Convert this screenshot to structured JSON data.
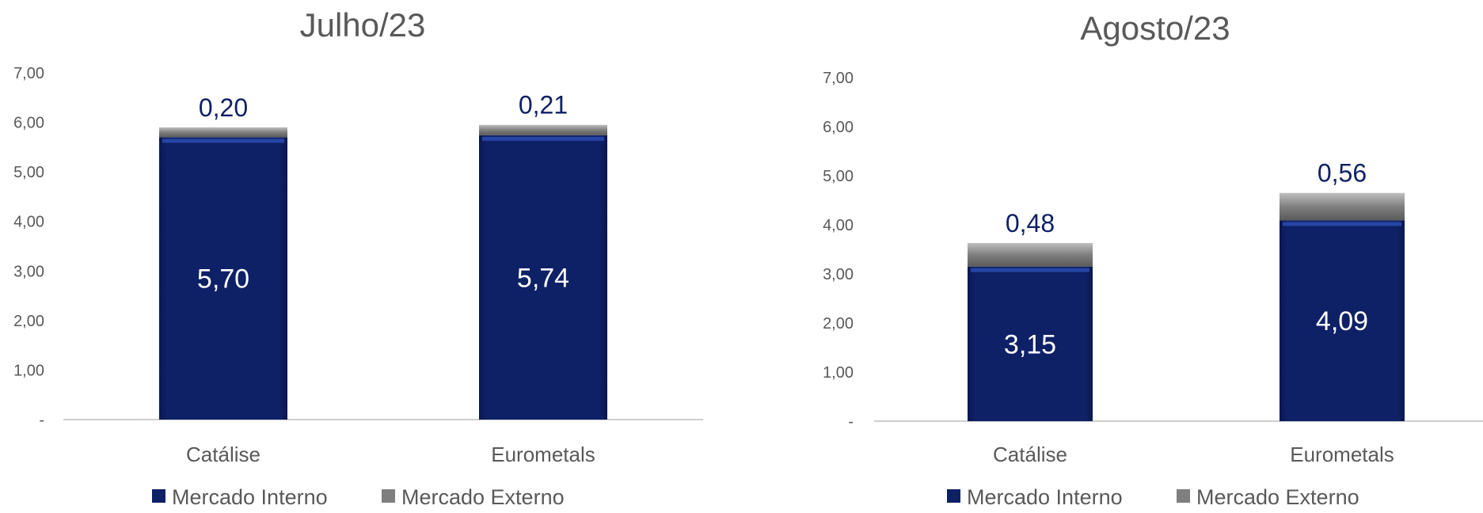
{
  "chart_data": [
    {
      "type": "bar",
      "stacked": true,
      "title": "Julho/23",
      "categories": [
        "Catálise",
        "Eurometals"
      ],
      "series": [
        {
          "name": "Mercado Interno",
          "values": [
            5.7,
            5.74
          ],
          "labels": [
            "5,70",
            "5,74"
          ]
        },
        {
          "name": "Mercado Externo",
          "values": [
            0.2,
            0.21
          ],
          "labels": [
            "0,20",
            "0,21"
          ]
        }
      ],
      "ylim": [
        0,
        7
      ],
      "yticks": [
        "-",
        "1,00",
        "2,00",
        "3,00",
        "4,00",
        "5,00",
        "6,00",
        "7,00"
      ],
      "legend": "bottom",
      "grid": false
    },
    {
      "type": "bar",
      "stacked": true,
      "title": "Agosto/23",
      "categories": [
        "Catálise",
        "Eurometals"
      ],
      "series": [
        {
          "name": "Mercado Interno",
          "values": [
            3.15,
            4.09
          ],
          "labels": [
            "3,15",
            "4,09"
          ]
        },
        {
          "name": "Mercado Externo",
          "values": [
            0.48,
            0.56
          ],
          "labels": [
            "0,48",
            "0,56"
          ]
        }
      ],
      "ylim": [
        0,
        7
      ],
      "yticks": [
        "-",
        "1,00",
        "2,00",
        "3,00",
        "4,00",
        "5,00",
        "6,00",
        "7,00"
      ],
      "legend": "bottom",
      "grid": false
    }
  ],
  "colors": {
    "mercado_interno": "#0f2166",
    "mercado_externo": "#7f7f7f",
    "axis": "#bfbfbf",
    "text": "#595959",
    "label_external": "#0f2166"
  }
}
